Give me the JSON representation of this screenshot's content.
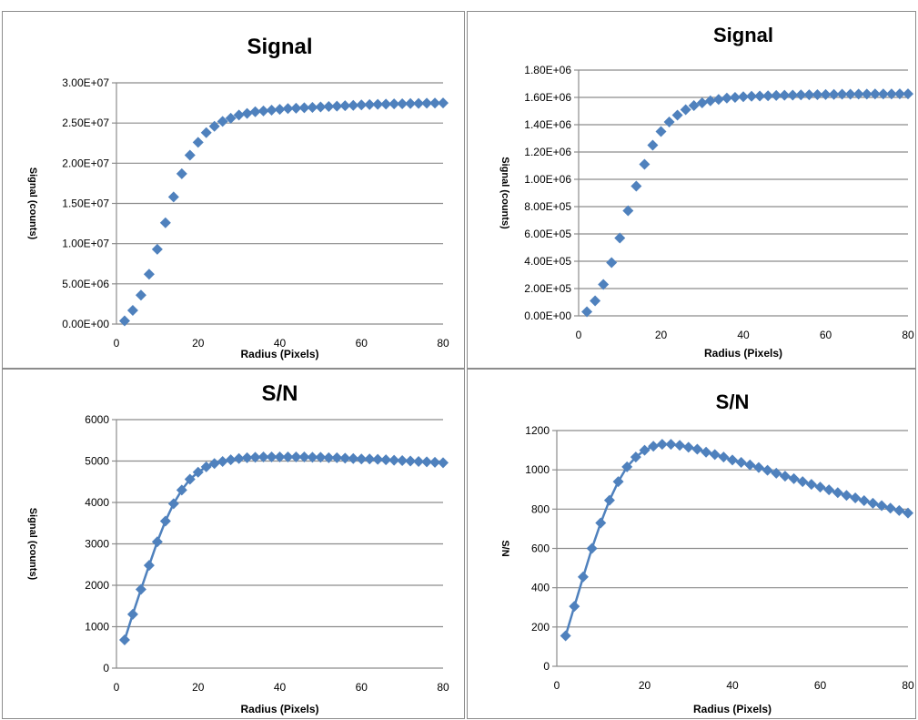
{
  "colors": {
    "marker": "#4f81bd",
    "line": "#4f81bd"
  },
  "chart_data": [
    {
      "type": "scatter",
      "title": "Signal",
      "xlabel": "Radius (Pixels)",
      "ylabel": "Signal (counts)",
      "xlim": [
        0,
        80
      ],
      "ylim": [
        0,
        30000000
      ],
      "xticks": [
        0,
        20,
        40,
        60,
        80
      ],
      "xtick_labels": [
        "0",
        "20",
        "40",
        "60",
        "80"
      ],
      "yticks": [
        0,
        5000000,
        10000000,
        15000000,
        20000000,
        25000000,
        30000000
      ],
      "ytick_labels": [
        "0.00E+00",
        "5.00E+06",
        "1.00E+07",
        "1.50E+07",
        "2.00E+07",
        "2.50E+07",
        "3.00E+07"
      ],
      "grid": true,
      "legend": false,
      "connected": false,
      "x": [
        2,
        4,
        6,
        8,
        10,
        12,
        14,
        16,
        18,
        20,
        22,
        24,
        26,
        28,
        30,
        32,
        34,
        36,
        38,
        40,
        42,
        44,
        46,
        48,
        50,
        52,
        54,
        56,
        58,
        60,
        62,
        64,
        66,
        68,
        70,
        72,
        74,
        76,
        78,
        80
      ],
      "y": [
        400000,
        1700000,
        3600000,
        6200000,
        9300000,
        12600000,
        15800000,
        18700000,
        21000000,
        22600000,
        23800000,
        24600000,
        25200000,
        25600000,
        26000000,
        26200000,
        26400000,
        26500000,
        26600000,
        26700000,
        26800000,
        26850000,
        26900000,
        26950000,
        27000000,
        27050000,
        27100000,
        27150000,
        27200000,
        27250000,
        27300000,
        27320000,
        27350000,
        27380000,
        27400000,
        27420000,
        27440000,
        27460000,
        27480000,
        27500000
      ]
    },
    {
      "type": "scatter",
      "title": "Signal",
      "xlabel": "Radius (Pixels)",
      "ylabel": "Signal (counts)",
      "xlim": [
        0,
        80
      ],
      "ylim": [
        0,
        1800000
      ],
      "xticks": [
        0,
        20,
        40,
        60,
        80
      ],
      "xtick_labels": [
        "0",
        "20",
        "40",
        "60",
        "80"
      ],
      "yticks": [
        0,
        200000,
        400000,
        600000,
        800000,
        1000000,
        1200000,
        1400000,
        1600000,
        1800000
      ],
      "ytick_labels": [
        "0.00E+00",
        "2.00E+05",
        "4.00E+05",
        "6.00E+05",
        "8.00E+05",
        "1.00E+06",
        "1.20E+06",
        "1.40E+06",
        "1.60E+06",
        "1.80E+06"
      ],
      "grid": true,
      "legend": false,
      "connected": false,
      "x": [
        2,
        4,
        6,
        8,
        10,
        12,
        14,
        16,
        18,
        20,
        22,
        24,
        26,
        28,
        30,
        32,
        34,
        36,
        38,
        40,
        42,
        44,
        46,
        48,
        50,
        52,
        54,
        56,
        58,
        60,
        62,
        64,
        66,
        68,
        70,
        72,
        74,
        76,
        78,
        80
      ],
      "y": [
        30000,
        110000,
        230000,
        390000,
        570000,
        770000,
        950000,
        1110000,
        1250000,
        1350000,
        1420000,
        1470000,
        1510000,
        1540000,
        1560000,
        1575000,
        1585000,
        1595000,
        1600000,
        1605000,
        1608000,
        1610000,
        1612000,
        1614000,
        1616000,
        1617000,
        1618000,
        1619000,
        1620000,
        1621000,
        1622000,
        1623000,
        1623000,
        1624000,
        1624000,
        1625000,
        1625000,
        1625000,
        1626000,
        1626000
      ]
    },
    {
      "type": "line",
      "title": "S/N",
      "xlabel": "Radius (Pixels)",
      "ylabel": "Signal (counts)",
      "xlim": [
        0,
        80
      ],
      "ylim": [
        0,
        6000
      ],
      "xticks": [
        0,
        20,
        40,
        60,
        80
      ],
      "xtick_labels": [
        "0",
        "20",
        "40",
        "60",
        "80"
      ],
      "yticks": [
        0,
        1000,
        2000,
        3000,
        4000,
        5000,
        6000
      ],
      "ytick_labels": [
        "0",
        "1000",
        "2000",
        "3000",
        "4000",
        "5000",
        "6000"
      ],
      "grid": true,
      "legend": false,
      "connected": true,
      "x": [
        2,
        4,
        6,
        8,
        10,
        12,
        14,
        16,
        18,
        20,
        22,
        24,
        26,
        28,
        30,
        32,
        34,
        36,
        38,
        40,
        42,
        44,
        46,
        48,
        50,
        52,
        54,
        56,
        58,
        60,
        62,
        64,
        66,
        68,
        70,
        72,
        74,
        76,
        78,
        80
      ],
      "y": [
        680,
        1300,
        1900,
        2480,
        3050,
        3550,
        3970,
        4300,
        4560,
        4730,
        4860,
        4940,
        4990,
        5030,
        5060,
        5080,
        5090,
        5100,
        5100,
        5100,
        5100,
        5100,
        5100,
        5090,
        5090,
        5080,
        5080,
        5070,
        5060,
        5050,
        5050,
        5040,
        5030,
        5020,
        5010,
        5000,
        4990,
        4980,
        4970,
        4960
      ]
    },
    {
      "type": "line",
      "title": "S/N",
      "xlabel": "Radius (Pixels)",
      "ylabel": "S/N",
      "xlim": [
        0,
        80
      ],
      "ylim": [
        0,
        1200
      ],
      "xticks": [
        0,
        20,
        40,
        60,
        80
      ],
      "xtick_labels": [
        "0",
        "20",
        "40",
        "60",
        "80"
      ],
      "yticks": [
        0,
        200,
        400,
        600,
        800,
        1000,
        1200
      ],
      "ytick_labels": [
        "0",
        "200",
        "400",
        "600",
        "800",
        "1000",
        "1200"
      ],
      "grid": true,
      "legend": false,
      "connected": true,
      "x": [
        2,
        4,
        6,
        8,
        10,
        12,
        14,
        16,
        18,
        20,
        22,
        24,
        26,
        28,
        30,
        32,
        34,
        36,
        38,
        40,
        42,
        44,
        46,
        48,
        50,
        52,
        54,
        56,
        58,
        60,
        62,
        64,
        66,
        68,
        70,
        72,
        74,
        76,
        78,
        80
      ],
      "y": [
        155,
        305,
        455,
        600,
        730,
        845,
        940,
        1015,
        1065,
        1100,
        1120,
        1130,
        1130,
        1125,
        1115,
        1105,
        1090,
        1078,
        1065,
        1050,
        1038,
        1025,
        1012,
        998,
        983,
        968,
        955,
        940,
        926,
        912,
        898,
        884,
        870,
        857,
        843,
        830,
        818,
        805,
        793,
        780
      ]
    }
  ]
}
